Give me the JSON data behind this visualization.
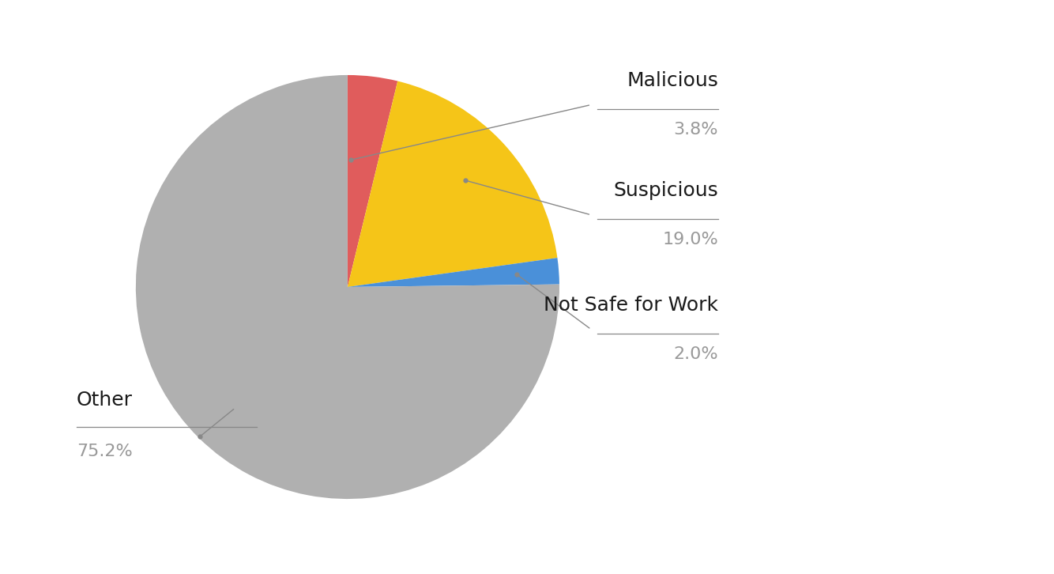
{
  "labels": [
    "Malicious",
    "Suspicious",
    "Not Safe for Work",
    "Other"
  ],
  "values": [
    3.8,
    19.0,
    2.0,
    75.2
  ],
  "colors": [
    "#e05c5c",
    "#f5c518",
    "#4a90d9",
    "#b0b0b0"
  ],
  "label_color_dark": "#1a1a1a",
  "label_color_pct": "#999999",
  "background_color": "#ffffff",
  "annotation_line_color": "#888888",
  "font_size_label": 18,
  "font_size_pct": 16,
  "startangle": 90
}
